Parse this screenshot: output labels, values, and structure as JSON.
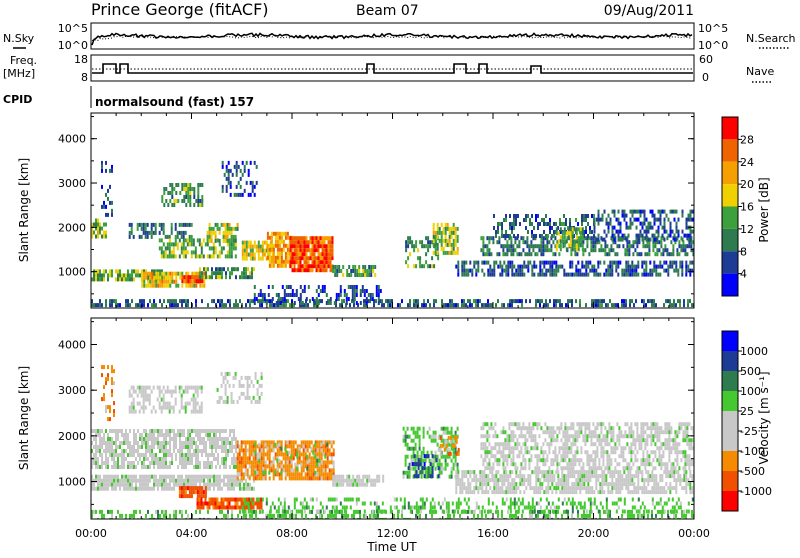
{
  "header": {
    "station": "Prince George (fitACF)",
    "beam": "Beam 07",
    "date": "09/Aug/2011"
  },
  "noise_panel": {
    "left_label": "N.Sky",
    "right_label": "N.Search",
    "left_ticks": [
      "10^5",
      "10^0"
    ],
    "right_ticks": [
      "10^5",
      "10^0"
    ]
  },
  "freq_panel": {
    "left_label_1": "Freq.",
    "left_label_2": "[MHz]",
    "right_label": "Nave",
    "left_ticks": [
      "18",
      "8"
    ],
    "right_ticks": [
      "60",
      "0"
    ]
  },
  "cpid_panel": {
    "label": "CPID",
    "value": "normalsound (fast) 157"
  },
  "colors": {
    "power_scale": [
      "#0000ff",
      "#1e3c96",
      "#2e7b50",
      "#3ca03c",
      "#f0d000",
      "#f5a000",
      "#f06400",
      "#ff0000"
    ],
    "velocity_scale": [
      "#ff0000",
      "#f05000",
      "#f58c00",
      "#c8c8c8",
      "#c8c8c8",
      "#46c830",
      "#2e7b50",
      "#1e3c96",
      "#0000ff"
    ]
  },
  "chart_data": [
    {
      "type": "heatmap",
      "title": "Power",
      "ylabel": "Slant Range [km]",
      "yticks": [
        "1000",
        "2000",
        "3000",
        "4000"
      ],
      "ylim": [
        180,
        4580
      ],
      "xlim": [
        0,
        24
      ],
      "colorbar": {
        "label": "Power [dB]",
        "range": [
          0,
          32
        ],
        "ticks": [
          "4",
          "8",
          "12",
          "16",
          "20",
          "24",
          "28"
        ]
      },
      "regions": [
        {
          "t0": 0.0,
          "t1": 24.0,
          "r0": 200,
          "r1": 380,
          "v": 8,
          "d": 0.55
        },
        {
          "t0": 0.0,
          "t1": 2.8,
          "r0": 800,
          "r1": 1050,
          "v": 14,
          "d": 0.75
        },
        {
          "t0": 2.0,
          "t1": 4.5,
          "r0": 700,
          "r1": 1000,
          "v": 20,
          "d": 0.85
        },
        {
          "t0": 3.6,
          "t1": 4.4,
          "r0": 780,
          "r1": 920,
          "v": 27,
          "d": 0.9
        },
        {
          "t0": 4.3,
          "t1": 6.5,
          "r0": 850,
          "r1": 1100,
          "v": 12,
          "d": 0.7
        },
        {
          "t0": 0.0,
          "t1": 0.6,
          "r0": 1800,
          "r1": 2200,
          "v": 16,
          "d": 0.7
        },
        {
          "t0": 1.5,
          "t1": 4.0,
          "r0": 1800,
          "r1": 2100,
          "v": 10,
          "d": 0.5
        },
        {
          "t0": 2.7,
          "t1": 5.8,
          "r0": 1350,
          "r1": 1750,
          "v": 14,
          "d": 0.65
        },
        {
          "t0": 4.6,
          "t1": 5.8,
          "r0": 1700,
          "r1": 2100,
          "v": 16,
          "d": 0.7
        },
        {
          "t0": 0.4,
          "t1": 0.8,
          "r0": 2300,
          "r1": 3500,
          "v": 6,
          "d": 0.35
        },
        {
          "t0": 2.8,
          "t1": 4.4,
          "r0": 2500,
          "r1": 3000,
          "v": 12,
          "d": 0.5
        },
        {
          "t0": 5.2,
          "t1": 6.6,
          "r0": 2700,
          "r1": 3500,
          "v": 6,
          "d": 0.35
        },
        {
          "t0": 6.0,
          "t1": 7.2,
          "r0": 1300,
          "r1": 1700,
          "v": 18,
          "d": 0.75
        },
        {
          "t0": 7.0,
          "t1": 8.0,
          "r0": 1100,
          "r1": 1900,
          "v": 22,
          "d": 0.85
        },
        {
          "t0": 7.9,
          "t1": 9.6,
          "r0": 1000,
          "r1": 1800,
          "v": 27,
          "d": 0.9
        },
        {
          "t0": 9.6,
          "t1": 11.3,
          "r0": 950,
          "r1": 1150,
          "v": 12,
          "d": 0.7
        },
        {
          "t0": 6.4,
          "t1": 11.5,
          "r0": 300,
          "r1": 700,
          "v": 6,
          "d": 0.45
        },
        {
          "t0": 12.5,
          "t1": 13.8,
          "r0": 1100,
          "r1": 1800,
          "v": 12,
          "d": 0.45
        },
        {
          "t0": 13.6,
          "t1": 14.6,
          "r0": 1400,
          "r1": 2100,
          "v": 16,
          "d": 0.75
        },
        {
          "t0": 14.5,
          "t1": 24.0,
          "r0": 900,
          "r1": 1250,
          "v": 7,
          "d": 0.6
        },
        {
          "t0": 15.5,
          "t1": 24.0,
          "r0": 1350,
          "r1": 1800,
          "v": 9,
          "d": 0.55
        },
        {
          "t0": 16.0,
          "t1": 20.0,
          "r0": 1800,
          "r1": 2300,
          "v": 8,
          "d": 0.5
        },
        {
          "t0": 18.5,
          "t1": 19.6,
          "r0": 1500,
          "r1": 2000,
          "v": 14,
          "d": 0.7
        },
        {
          "t0": 20.0,
          "t1": 24.0,
          "r0": 1700,
          "r1": 2400,
          "v": 7,
          "d": 0.45
        }
      ]
    },
    {
      "type": "heatmap",
      "title": "Velocity",
      "ylabel": "Slant Range [km]",
      "yticks": [
        "1000",
        "2000",
        "3000",
        "4000"
      ],
      "ylim": [
        180,
        4580
      ],
      "xlim": [
        0,
        24
      ],
      "xticks": [
        "00:00",
        "04:00",
        "08:00",
        "12:00",
        "16:00",
        "20:00",
        "00:00"
      ],
      "xlabel": "Time UT",
      "colorbar": {
        "label": "Velocity [m s⁻¹]",
        "ticks": [
          "1000",
          "500",
          "100",
          "25",
          "-25",
          "-100",
          "-500",
          "-1000"
        ]
      },
      "regions": [
        {
          "t0": 0.0,
          "t1": 24.0,
          "r0": 200,
          "r1": 380,
          "v": 5,
          "d": 0.45
        },
        {
          "t0": 0.0,
          "t1": 6.5,
          "r0": 800,
          "r1": 1150,
          "v": 4,
          "d": 0.85
        },
        {
          "t0": 3.5,
          "t1": 4.6,
          "r0": 650,
          "r1": 900,
          "v": 1,
          "d": 0.85
        },
        {
          "t0": 4.2,
          "t1": 6.8,
          "r0": 450,
          "r1": 650,
          "v": 1,
          "d": 0.85
        },
        {
          "t0": 0.0,
          "t1": 5.8,
          "r0": 1350,
          "r1": 2150,
          "v": 4,
          "d": 0.75
        },
        {
          "t0": 0.4,
          "t1": 0.9,
          "r0": 2400,
          "r1": 3550,
          "v": 2,
          "d": 0.3
        },
        {
          "t0": 1.5,
          "t1": 4.4,
          "r0": 2500,
          "r1": 3100,
          "v": 4,
          "d": 0.5
        },
        {
          "t0": 5.0,
          "t1": 6.8,
          "r0": 2700,
          "r1": 3400,
          "v": 4,
          "d": 0.35
        },
        {
          "t0": 5.8,
          "t1": 9.7,
          "r0": 1100,
          "r1": 1900,
          "v": 2,
          "d": 0.85
        },
        {
          "t0": 6.5,
          "t1": 9.6,
          "r0": 1150,
          "r1": 1850,
          "v": 5,
          "d": 0.2
        },
        {
          "t0": 9.6,
          "t1": 11.6,
          "r0": 900,
          "r1": 1150,
          "v": 4,
          "d": 0.8
        },
        {
          "t0": 12.4,
          "t1": 14.6,
          "r0": 1100,
          "r1": 2200,
          "v": 5,
          "d": 0.55
        },
        {
          "t0": 12.6,
          "t1": 13.8,
          "r0": 1150,
          "r1": 1600,
          "v": 7,
          "d": 0.35
        },
        {
          "t0": 13.8,
          "t1": 14.6,
          "r0": 1600,
          "r1": 2000,
          "v": 2,
          "d": 0.4
        },
        {
          "t0": 14.5,
          "t1": 24.0,
          "r0": 800,
          "r1": 1250,
          "v": 4,
          "d": 0.75
        },
        {
          "t0": 15.5,
          "t1": 24.0,
          "r0": 1300,
          "r1": 2300,
          "v": 4,
          "d": 0.6
        },
        {
          "t0": 6.0,
          "t1": 24.0,
          "r0": 300,
          "r1": 650,
          "v": 5,
          "d": 0.35
        }
      ]
    }
  ]
}
